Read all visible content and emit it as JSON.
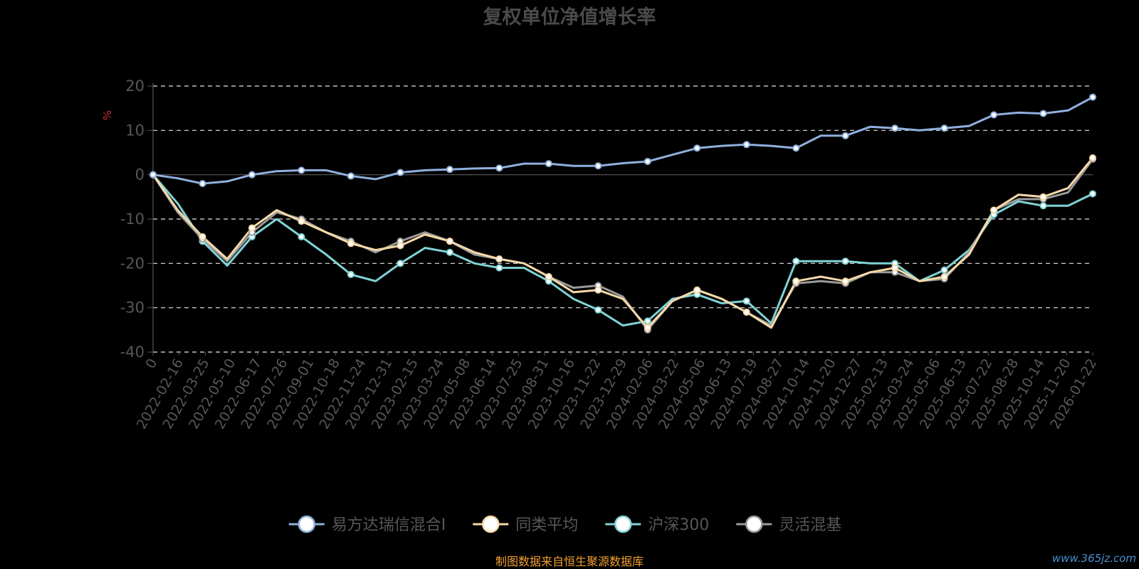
{
  "footer": {
    "source": "制图数据来自恒生聚源数据库",
    "watermark": "www.365jz.com"
  },
  "colors": {
    "background": "#000000",
    "title": "#4a4a4a",
    "axis_text": "#575757",
    "unit": "#d32f2f",
    "grid": "#ffffff",
    "source": "#f0a030"
  },
  "chart_data": {
    "type": "line",
    "title": "复权单位净值增长率",
    "ylabel": "%",
    "ylim": [
      -40,
      20
    ],
    "yticks": [
      20,
      10,
      0,
      -10,
      -20,
      -30,
      -40
    ],
    "grid": true,
    "legend_position": "bottom",
    "x_tick_labels": [
      "0",
      "2022-02-16",
      "2022-03-25",
      "2022-05-10",
      "2022-06-17",
      "2022-07-26",
      "2022-09-01",
      "2022-10-18",
      "2022-11-24",
      "2022-12-31",
      "2023-02-15",
      "2023-03-24",
      "2023-05-08",
      "2023-06-14",
      "2023-07-25",
      "2023-08-31",
      "2023-10-16",
      "2023-11-22",
      "2023-12-29",
      "2024-02-06",
      "2024-03-22",
      "2024-05-06",
      "2024-06-13",
      "2024-07-19",
      "2024-08-27",
      "2024-10-14",
      "2024-11-20",
      "2024-12-27",
      "2025-02-13",
      "2025-03-24",
      "2025-05-06",
      "2025-06-13",
      "2025-07-22",
      "2025-08-28",
      "2025-10-14",
      "2025-11-20",
      "2026-01-22"
    ],
    "series": [
      {
        "name": "易方达瑞信混合I",
        "color": "#8fb0df",
        "values": [
          0,
          -0.8,
          -2.0,
          -1.5,
          0,
          0.8,
          1.0,
          1.0,
          -0.3,
          -1.0,
          0.5,
          1.0,
          1.2,
          1.4,
          1.5,
          2.5,
          2.5,
          2.0,
          2.0,
          2.6,
          3.0,
          4.5,
          6.0,
          6.5,
          6.8,
          6.5,
          6.0,
          8.8,
          8.8,
          10.8,
          10.5,
          10.0,
          10.5,
          11.0,
          13.5,
          14.0,
          13.8,
          14.5,
          17.5
        ]
      },
      {
        "name": "同类平均",
        "color": "#f6d9a8",
        "values": [
          0,
          -8.0,
          -14.0,
          -19.0,
          -12.0,
          -8.0,
          -10.5,
          -13.0,
          -15.5,
          -17.0,
          -16.0,
          -13.5,
          -15.0,
          -17.5,
          -19.0,
          -20.0,
          -23.0,
          -26.5,
          -26.0,
          -28.0,
          -34.5,
          -28.5,
          -26.0,
          -28.0,
          -31.0,
          -34.5,
          -24.0,
          -23.0,
          -24.0,
          -22.0,
          -21.0,
          -24.0,
          -23.0,
          -18.0,
          -8.0,
          -4.5,
          -5.0,
          -3.0,
          3.8
        ]
      },
      {
        "name": "沪深300",
        "color": "#7fd3d6",
        "values": [
          0,
          -6.5,
          -15.0,
          -20.5,
          -14.0,
          -10.0,
          -14.0,
          -18.0,
          -22.5,
          -24.0,
          -20.0,
          -16.5,
          -17.5,
          -20.0,
          -21.0,
          -21.0,
          -24.0,
          -28.0,
          -30.5,
          -34.0,
          -33.0,
          -28.0,
          -27.0,
          -29.0,
          -28.5,
          -33.5,
          -19.5,
          -19.5,
          -19.5,
          -20.0,
          -20.0,
          -24.0,
          -21.5,
          -17.0,
          -9.0,
          -6.0,
          -7.0,
          -7.0,
          -4.3
        ]
      },
      {
        "name": "灵活混基",
        "color": "#9a9a9a",
        "values": [
          0,
          -8.5,
          -14.5,
          -19.5,
          -13.0,
          -8.5,
          -10.0,
          -13.0,
          -15.0,
          -17.5,
          -15.0,
          -13.0,
          -15.0,
          -18.0,
          -19.0,
          -20.0,
          -23.0,
          -25.5,
          -25.0,
          -27.5,
          -35.0,
          -28.5,
          -26.0,
          -28.0,
          -31.0,
          -34.0,
          -24.5,
          -24.0,
          -24.5,
          -22.0,
          -22.0,
          -24.0,
          -23.5,
          -17.5,
          -8.0,
          -5.5,
          -5.5,
          -4.0,
          3.5
        ]
      }
    ]
  }
}
